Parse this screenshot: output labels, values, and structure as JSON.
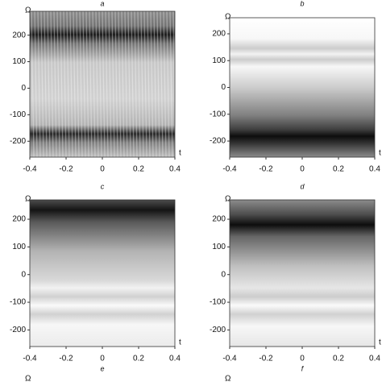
{
  "chart_data": [
    {
      "type": "heatmap",
      "title": "a",
      "xlabel": "t",
      "ylabel": "Ω",
      "xlim": [
        -0.4,
        0.4
      ],
      "ylim": [
        -260,
        290
      ],
      "xticks": [
        -0.4,
        -0.2,
        0,
        0.2,
        0.4
      ],
      "yticks": [
        -200,
        -100,
        0,
        100,
        200
      ]
    },
    {
      "type": "heatmap",
      "title": "b",
      "xlabel": "t",
      "ylabel": "Ω",
      "xlim": [
        -0.4,
        0.4
      ],
      "ylim": [
        -260,
        260
      ],
      "xticks": [
        -0.4,
        -0.2,
        0,
        0.2,
        0.4
      ],
      "yticks": [
        -200,
        -100,
        0,
        100,
        200
      ]
    },
    {
      "type": "heatmap",
      "title": "c",
      "xlabel": "t",
      "ylabel": "Ω",
      "xlim": [
        -0.4,
        0.4
      ],
      "ylim": [
        -260,
        270
      ],
      "xticks": [
        -0.4,
        -0.2,
        0,
        0.2,
        0.4
      ],
      "yticks": [
        -200,
        -100,
        0,
        100,
        200
      ]
    },
    {
      "type": "heatmap",
      "title": "d",
      "xlabel": "t",
      "ylabel": "Ω",
      "xlim": [
        -0.4,
        0.4
      ],
      "ylim": [
        -260,
        270
      ],
      "xticks": [
        -0.4,
        -0.2,
        0,
        0.2,
        0.4
      ],
      "yticks": [
        -200,
        -100,
        0,
        100,
        200
      ]
    },
    {
      "type": "heatmap",
      "title": "e",
      "ylabel": "Ω"
    },
    {
      "type": "heatmap",
      "title": "f",
      "ylabel": "Ω"
    }
  ]
}
